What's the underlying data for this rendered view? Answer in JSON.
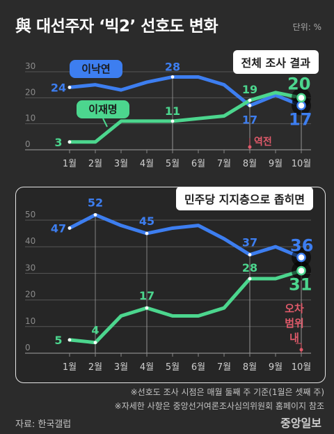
{
  "header": {
    "title": "與 대선주자 ‘빅2’ 선호도 변화",
    "unit": "단위: %"
  },
  "footer": {
    "note1": "※선호도 조사 시점은 매월 둘째 주 기준(1월은 셋째 주)",
    "note2": "※자세한 사항은 중앙선거여론조사심의위원회 홈페이지 참조",
    "source": "자료: 한국갤럽",
    "logo": "중앙일보"
  },
  "colors": {
    "lee_nakyon": "#3d7ef0",
    "lee_jaemyung": "#4cd68e",
    "annotation": "#e05a6a"
  },
  "chart_data": [
    {
      "type": "line",
      "title": "전체 조사 결과",
      "categories": [
        "1월",
        "2월",
        "3월",
        "4월",
        "5월",
        "6월",
        "7월",
        "8월",
        "9월",
        "10월"
      ],
      "ylim": [
        0,
        30
      ],
      "yticks": [
        0,
        10,
        20,
        30
      ],
      "grid": true,
      "series": [
        {
          "name": "이낙연",
          "values": [
            24,
            25,
            23,
            26,
            28,
            28,
            25,
            17,
            21,
            17
          ],
          "labels": [
            {
              "i": 0,
              "text": "24"
            },
            {
              "i": 4,
              "text": "28"
            },
            {
              "i": 7,
              "text": "17"
            },
            {
              "i": 9,
              "text": "17"
            }
          ]
        },
        {
          "name": "이재명",
          "values": [
            3,
            3,
            11,
            11,
            11,
            12,
            13,
            19,
            22,
            20
          ],
          "labels": [
            {
              "i": 0,
              "text": "3"
            },
            {
              "i": 4,
              "text": "11"
            },
            {
              "i": 7,
              "text": "19"
            },
            {
              "i": 9,
              "text": "20"
            }
          ]
        }
      ],
      "annotation": {
        "text": "역전",
        "at": 7
      }
    },
    {
      "type": "line",
      "title": "민주당 지지층으로 좁히면",
      "categories": [
        "1월",
        "2월",
        "3월",
        "4월",
        "5월",
        "6월",
        "7월",
        "8월",
        "9월",
        "10월"
      ],
      "ylim": [
        0,
        50
      ],
      "yticks": [
        0,
        10,
        20,
        30,
        40,
        50
      ],
      "grid": true,
      "series": [
        {
          "name": "이낙연",
          "values": [
            47,
            52,
            48,
            45,
            47,
            48,
            43,
            37,
            40,
            36
          ],
          "labels": [
            {
              "i": 0,
              "text": "47"
            },
            {
              "i": 1,
              "text": "52"
            },
            {
              "i": 3,
              "text": "45"
            },
            {
              "i": 7,
              "text": "37"
            },
            {
              "i": 9,
              "text": "36"
            }
          ]
        },
        {
          "name": "이재명",
          "values": [
            5,
            4,
            14,
            17,
            14,
            14,
            17,
            28,
            28,
            31
          ],
          "labels": [
            {
              "i": 0,
              "text": "5"
            },
            {
              "i": 1,
              "text": "4"
            },
            {
              "i": 3,
              "text": "17"
            },
            {
              "i": 7,
              "text": "28"
            },
            {
              "i": 9,
              "text": "31"
            }
          ]
        }
      ],
      "annotation": {
        "lines": [
          "오차",
          "범위",
          "내"
        ],
        "at": 9
      }
    }
  ]
}
